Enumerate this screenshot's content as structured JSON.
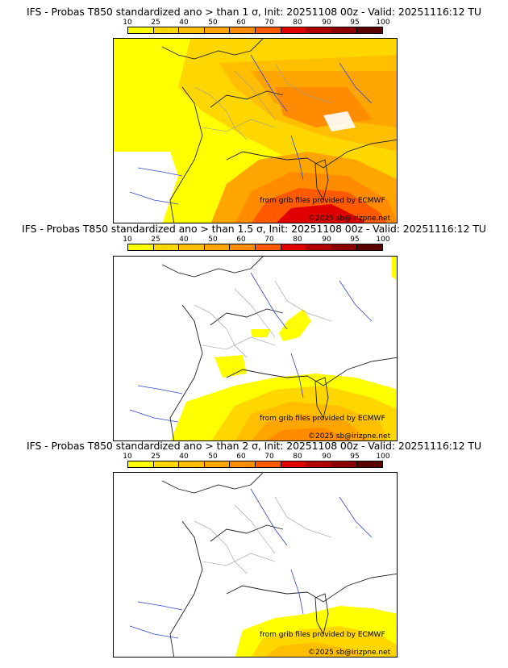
{
  "colorbar": {
    "labels": [
      "10",
      "25",
      "40",
      "50",
      "60",
      "70",
      "80",
      "90",
      "95",
      "100"
    ],
    "colors": [
      "#ffff00",
      "#ffd700",
      "#ffbf00",
      "#ffa500",
      "#ff8c00",
      "#ff5a00",
      "#e00000",
      "#b00000",
      "#8b0000",
      "#5a0000"
    ]
  },
  "credits": {
    "source": "from grib files provided by ECMWF",
    "copyright": "©2025 sb@irizpne.net"
  },
  "panels": [
    {
      "title": "IFS - Probas T850  standardized ano > than 1 σ, Init: 20251108 00z - Valid: 20251116:12 TU",
      "threshold_sigma": 1
    },
    {
      "title": "IFS - Probas T850  standardized ano > than 1.5 σ, Init: 20251108 00z - Valid: 20251116:12 TU",
      "threshold_sigma": 1.5
    },
    {
      "title": "IFS - Probas T850  standardized ano > than 2 σ, Init: 20251108 00z - Valid: 20251116:12 TU",
      "threshold_sigma": 2
    }
  ]
}
